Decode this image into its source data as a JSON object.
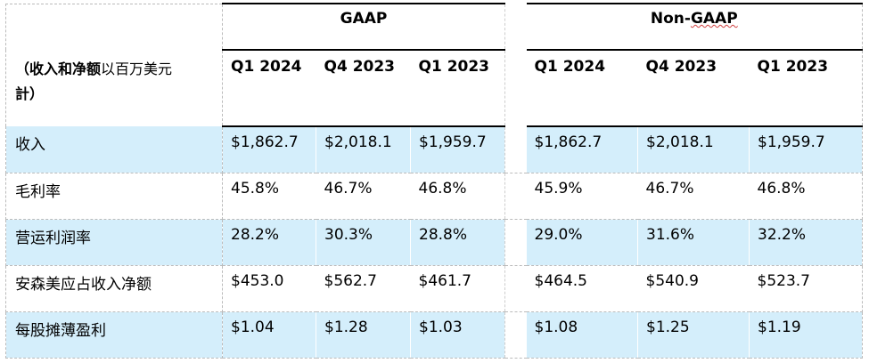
{
  "header": {
    "gaap_label": "GAAP",
    "nongaap_label_a": "Non-",
    "nongaap_label_b": "GAAP",
    "unit_bold": "（收入和净额",
    "unit_rest": "以百万美元",
    "unit_line2": "計）"
  },
  "periods": [
    "Q1 2024",
    "Q4 2023",
    "Q1 2023",
    "Q1 2024",
    "Q4 2023",
    "Q1 2023"
  ],
  "rows": [
    {
      "label": "收入",
      "gaap": [
        "$1,862.7",
        "$2,018.1",
        "$1,959.7"
      ],
      "nongaap": [
        "$1,862.7",
        "$2,018.1",
        "$1,959.7"
      ]
    },
    {
      "label": "毛利率",
      "gaap": [
        "45.8%",
        "46.7%",
        "46.8%"
      ],
      "nongaap": [
        "45.9%",
        "46.7%",
        "46.8%"
      ]
    },
    {
      "label": "营运利润率",
      "gaap": [
        "28.2%",
        "30.3%",
        "28.8%"
      ],
      "nongaap": [
        "29.0%",
        "31.6%",
        "32.2%"
      ]
    },
    {
      "label": "安森美应占收入净额",
      "gaap": [
        "$453.0",
        "$562.7",
        "$461.7"
      ],
      "nongaap": [
        "$464.5",
        "$540.9",
        "$523.7"
      ]
    },
    {
      "label": "每股摊薄盈利",
      "gaap": [
        "$1.04",
        "$1.28",
        "$1.03"
      ],
      "nongaap": [
        "$1.08",
        "$1.25",
        "$1.19"
      ]
    }
  ],
  "colors": {
    "row_shade": "#d4eefb",
    "rule": "#000000"
  }
}
